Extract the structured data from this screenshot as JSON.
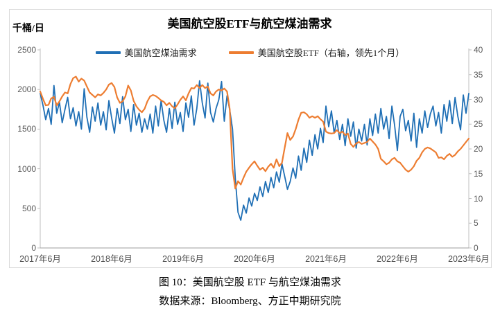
{
  "chart": {
    "title": "美国航空股ETF与航空煤油需求",
    "unit_label": "千桶/日",
    "legend": [
      {
        "label": "美国航空煤油需求",
        "color": "#1F6FB5"
      },
      {
        "label": "美国航空股ETF（右轴，领先1个月）",
        "color": "#ED7D31"
      }
    ]
  },
  "caption": {
    "line1": "图 10：美国航空股 ETF 与航空煤油需求",
    "line2": "数据来源：Bloomberg、方正中期研究院"
  },
  "chart_data": {
    "type": "line",
    "title": "美国航空股ETF与航空煤油需求",
    "xlabel": "",
    "ylabel_left": "千桶/日",
    "x_axis": {
      "labels": [
        "2017年6月",
        "2018年6月",
        "2019年6月",
        "2020年6月",
        "2021年6月",
        "2022年6月",
        "2023年6月"
      ],
      "note": "biweekly samples from 2017-06 to 2023-06, evenly spaced"
    },
    "left_axis": {
      "min": 0,
      "max": 2500,
      "ticks": [
        2500,
        2000,
        1500,
        1000,
        500,
        0
      ]
    },
    "right_axis": {
      "min": 0,
      "max": 40,
      "ticks": [
        40,
        35,
        30,
        25,
        20,
        15,
        10,
        5,
        0
      ]
    },
    "grid": false,
    "legend_position": "top",
    "series": [
      {
        "name": "美国航空煤油需求",
        "axis": "left",
        "color": "#1F6FB5",
        "width": 1.8,
        "values": [
          1950,
          1800,
          1620,
          1760,
          1560,
          2050,
          1700,
          1840,
          1580,
          1750,
          1900,
          1630,
          1770,
          1540,
          1720,
          1500,
          2010,
          1650,
          1460,
          1780,
          1600,
          1830,
          1550,
          1720,
          1490,
          1860,
          1640,
          1450,
          1760,
          1570,
          1910,
          1620,
          1750,
          1470,
          1810,
          1550,
          1700,
          1460,
          1630,
          1500,
          1690,
          1450,
          1790,
          1540,
          1860,
          1610,
          1460,
          1760,
          1510,
          1840,
          1560,
          1710,
          1470,
          1830,
          1650,
          1920,
          1550,
          1760,
          2110,
          1830,
          1640,
          2080,
          1710,
          1590,
          1760,
          1870,
          2100,
          1600,
          1920,
          1740,
          1500,
          880,
          450,
          350,
          540,
          440,
          630,
          530,
          690,
          600,
          770,
          650,
          840,
          700,
          890,
          760,
          960,
          830,
          1060,
          900,
          740,
          840,
          1010,
          880,
          1160,
          980,
          1260,
          1080,
          1360,
          1170,
          1430,
          1250,
          1510,
          1330,
          1790,
          1530,
          1730,
          1450,
          1610,
          1370,
          1560,
          1290,
          1630,
          1410,
          1590,
          1260,
          1500,
          1350,
          1560,
          1300,
          1630,
          1420,
          1690,
          1450,
          1760,
          1500,
          1660,
          1380,
          1790,
          1550,
          1230,
          1660,
          1750,
          1480,
          1610,
          1350,
          1700,
          1270,
          1630,
          1450,
          1730,
          1520,
          1690,
          1790,
          1540,
          1710,
          1450,
          1810,
          1600,
          1860,
          1570,
          1900,
          1660,
          1490,
          1930,
          1700,
          1950
        ]
      },
      {
        "name": "美国航空股ETF（右轴，领先1个月）",
        "axis": "right",
        "color": "#ED7D31",
        "width": 2.2,
        "values": [
          31.6,
          30.1,
          28.8,
          28.9,
          30.2,
          30.5,
          28.8,
          29.6,
          30.6,
          31.4,
          31.2,
          33.1,
          34.3,
          34.6,
          33.6,
          34.2,
          33.8,
          32.6,
          31.4,
          30.9,
          30.4,
          31.0,
          30.8,
          31.3,
          32.0,
          33.0,
          33.3,
          32.5,
          30.4,
          29.3,
          29.6,
          30.6,
          32.8,
          31.8,
          29.7,
          28.6,
          27.9,
          27.4,
          28.1,
          29.6,
          30.6,
          30.9,
          30.7,
          30.3,
          29.8,
          29.5,
          28.8,
          29.3,
          28.6,
          28.2,
          29.0,
          29.9,
          30.6,
          29.8,
          31.2,
          32.3,
          32.2,
          32.9,
          32.3,
          32.9,
          32.3,
          32.6,
          31.2,
          30.8,
          31.6,
          32.0,
          31.8,
          32.2,
          31.6,
          28.0,
          16.0,
          12.0,
          13.5,
          12.8,
          14.2,
          15.4,
          16.2,
          16.9,
          17.5,
          16.6,
          15.8,
          16.2,
          15.5,
          16.4,
          17.0,
          16.2,
          17.9,
          16.5,
          17.2,
          20.3,
          23.2,
          21.8,
          22.5,
          24.0,
          25.9,
          27.3,
          27.4,
          27.0,
          26.3,
          26.6,
          26.3,
          26.6,
          26.0,
          25.5,
          23.5,
          23.2,
          23.1,
          23.2,
          23.8,
          23.2,
          23.5,
          22.8,
          23.1,
          21.0,
          20.4,
          21.1,
          21.4,
          21.0,
          21.2,
          21.4,
          22.1,
          21.5,
          20.9,
          20.0,
          18.0,
          17.5,
          16.9,
          17.2,
          17.9,
          18.2,
          17.5,
          17.2,
          16.5,
          15.8,
          15.4,
          15.8,
          16.5,
          17.6,
          18.2,
          19.3,
          20.0,
          20.3,
          20.1,
          19.7,
          19.3,
          18.2,
          18.3,
          17.9,
          18.6,
          19.0,
          18.4,
          18.8,
          19.5,
          20.0,
          20.7,
          21.4,
          22.1
        ]
      }
    ]
  }
}
